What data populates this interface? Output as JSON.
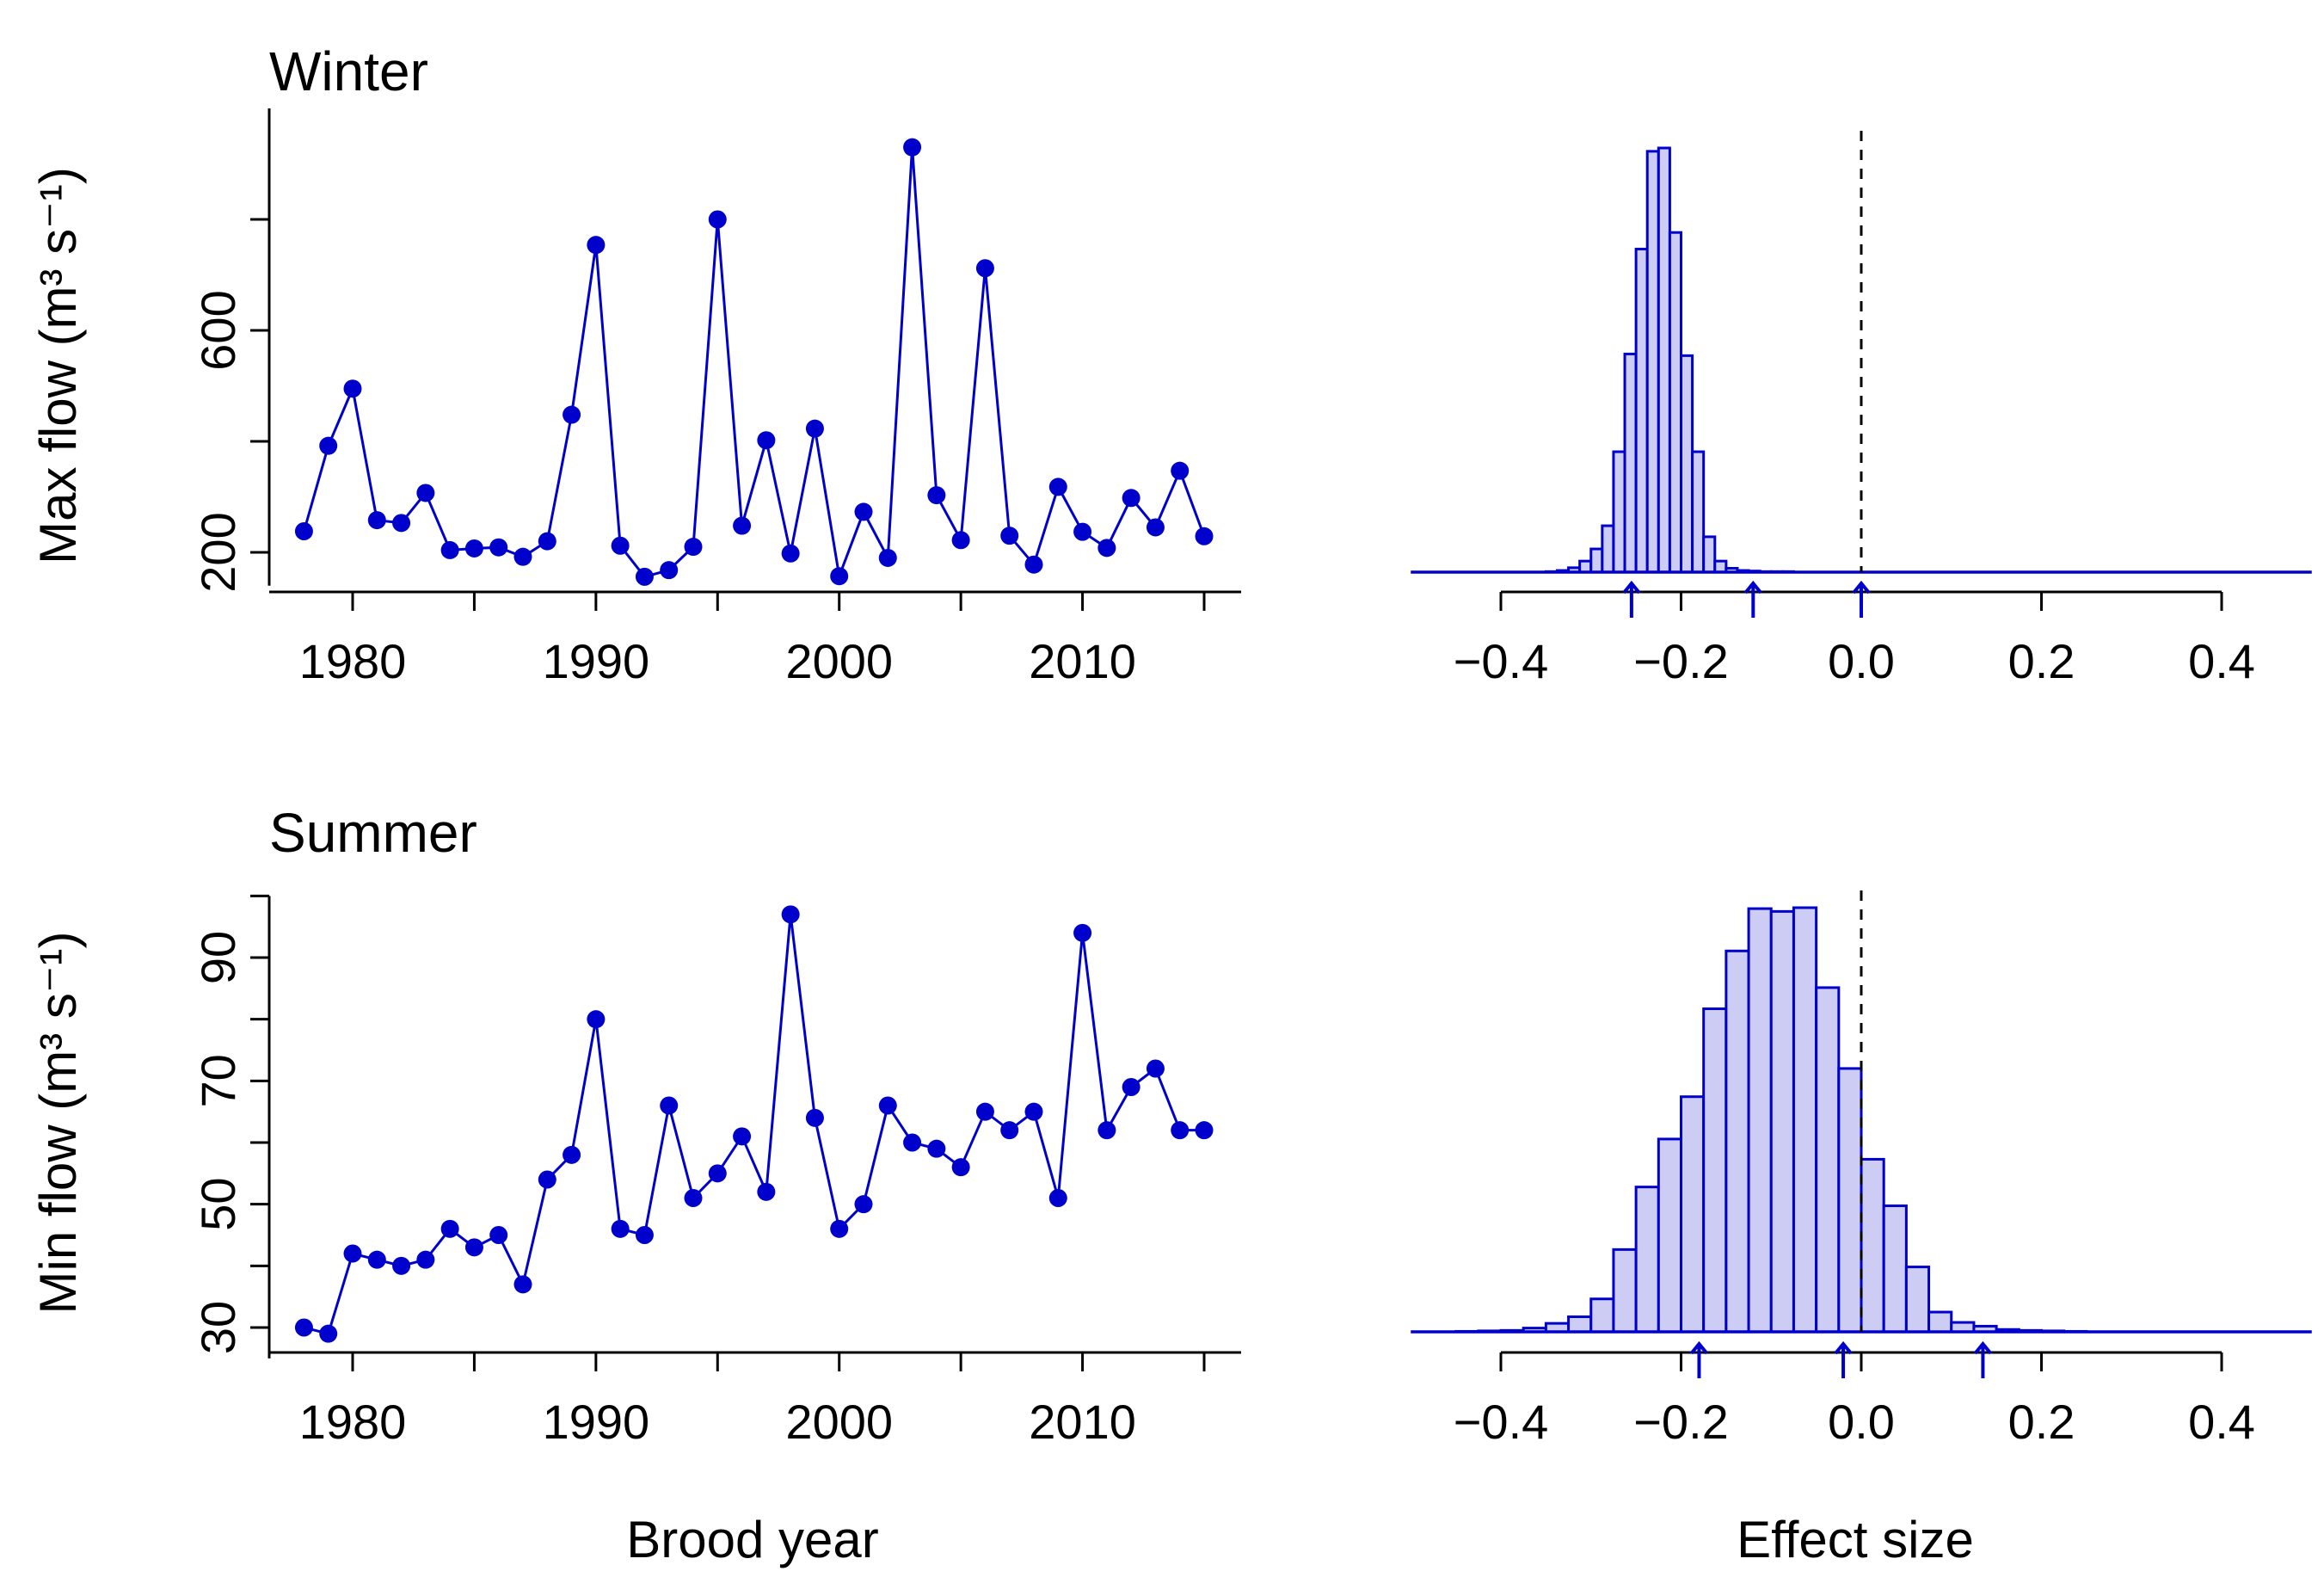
{
  "figure": {
    "xlabel_left": "Brood year",
    "xlabel_right": "Effect size"
  },
  "colors": {
    "series": "#0000cc",
    "hist_fill": "#ccccf5",
    "axis": "#000000"
  },
  "chart_data": [
    {
      "type": "line",
      "title": "Winter",
      "ylabel": "Max flow (m³ s⁻¹)",
      "xlabel": "",
      "xlim": [
        1976.5,
        2016.5
      ],
      "ylim": [
        140,
        1000
      ],
      "xticks": [
        1980,
        1990,
        2000,
        2010
      ],
      "yticks": [
        200,
        600
      ],
      "grid": false,
      "series": [
        {
          "x": [
            1978,
            1979,
            1980,
            1981,
            1982,
            1983,
            1984,
            1985,
            1986,
            1987,
            1988,
            1989,
            1990,
            1991,
            1992,
            1993,
            1994,
            1995,
            1996,
            1997,
            1998,
            1999,
            2000,
            2001,
            2002,
            2003,
            2004,
            2005,
            2006,
            2007,
            2008,
            2009,
            2010,
            2011,
            2012,
            2013,
            2014,
            2015
          ],
          "values": [
            238,
            392,
            495,
            258,
            253,
            307,
            204,
            207,
            209,
            192,
            220,
            448,
            754,
            212,
            156,
            168,
            210,
            800,
            248,
            402,
            198,
            423,
            157,
            273,
            190,
            930,
            303,
            222,
            712,
            230,
            178,
            318,
            237,
            208,
            298,
            245,
            347,
            229
          ]
        }
      ]
    },
    {
      "type": "bar",
      "title": "",
      "xlabel": "",
      "ylabel": "",
      "xlim": [
        -0.5,
        0.5
      ],
      "xticks": [
        -0.4,
        -0.2,
        0.0,
        0.2,
        0.4
      ],
      "xtick_labels": [
        "−0.4",
        "−0.2",
        "0.0",
        "0.2",
        "0.4"
      ],
      "bin_width": 0.0125,
      "bin_start": -0.35,
      "counts": [
        1,
        3,
        8,
        20,
        42,
        84,
        218,
        395,
        585,
        762,
        768,
        615,
        392,
        218,
        64,
        20,
        7,
        3,
        2,
        1,
        1,
        1,
        0,
        0,
        0,
        0,
        0,
        0,
        0
      ],
      "reference_line": 0.0,
      "arrows": [
        -0.255,
        -0.12,
        0.0
      ]
    },
    {
      "type": "line",
      "title": "Summer",
      "ylabel": "Min flow (m³ s⁻¹)",
      "xlabel": "",
      "xlim": [
        1976.5,
        2016.5
      ],
      "ylim": [
        25,
        100
      ],
      "xticks": [
        1980,
        1990,
        2000,
        2010
      ],
      "yticks": [
        30,
        50,
        70,
        90
      ],
      "grid": false,
      "series": [
        {
          "x": [
            1978,
            1979,
            1980,
            1981,
            1982,
            1983,
            1984,
            1985,
            1986,
            1987,
            1988,
            1989,
            1990,
            1991,
            1992,
            1993,
            1994,
            1995,
            1996,
            1997,
            1998,
            1999,
            2000,
            2001,
            2002,
            2003,
            2004,
            2005,
            2006,
            2007,
            2008,
            2009,
            2010,
            2011,
            2012,
            2013,
            2014,
            2015
          ],
          "values": [
            30,
            29,
            42,
            41,
            40,
            41,
            46,
            43,
            45,
            37,
            54,
            58,
            80,
            46,
            45,
            66,
            51,
            55,
            61,
            52,
            97,
            64,
            46,
            50,
            66,
            60,
            59,
            56,
            65,
            62,
            65,
            51,
            94,
            62,
            69,
            72,
            62,
            62
          ]
        }
      ]
    },
    {
      "type": "bar",
      "title": "",
      "xlabel": "",
      "ylabel": "",
      "xlim": [
        -0.5,
        0.5
      ],
      "xticks": [
        -0.4,
        -0.2,
        0.0,
        0.2,
        0.4
      ],
      "xtick_labels": [
        "−0.4",
        "−0.2",
        "0.0",
        "0.2",
        "0.4"
      ],
      "bin_width": 0.025,
      "bin_start": -0.45,
      "counts": [
        1,
        2,
        3,
        8,
        18,
        32,
        70,
        175,
        308,
        410,
        500,
        687,
        810,
        900,
        894,
        902,
        732,
        560,
        367,
        268,
        138,
        42,
        20,
        12,
        5,
        3,
        2,
        1,
        0,
        0,
        0,
        0,
        0,
        0,
        0,
        0
      ],
      "reference_line": 0.0,
      "arrows": [
        -0.18,
        -0.02,
        0.135
      ]
    }
  ]
}
